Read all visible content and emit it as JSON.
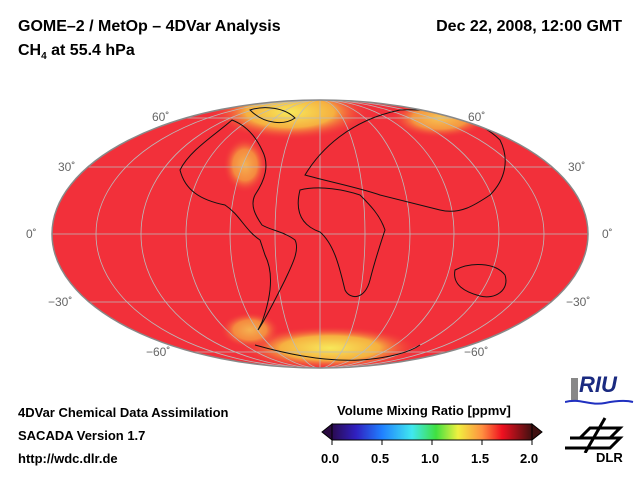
{
  "header": {
    "title": "GOME–2 / MetOp – 4DVar Analysis",
    "species": "CH",
    "species_sub": "4",
    "level": " at 55.4 hPa",
    "datetime": "Dec 22, 2008, 12:00 GMT"
  },
  "map": {
    "projection": "Hammer/Mollweide global",
    "lat_labels_left": [
      "60˚",
      "30˚",
      "0˚",
      "−30˚",
      "−60˚"
    ],
    "lat_labels_right": [
      "60˚",
      "30˚",
      "0˚",
      "−30˚",
      "−60˚"
    ],
    "background_color": "#f2303a",
    "high_color": "#f5e040"
  },
  "footer": {
    "line1": "4DVar Chemical Data Assimilation",
    "line2": "SACADA Version 1.7",
    "line3": "http://wdc.dlr.de"
  },
  "colorbar": {
    "title": "Volume Mixing Ratio [ppmv]",
    "ticks": [
      "0.0",
      "0.5",
      "1.0",
      "1.5",
      "2.0"
    ],
    "range": [
      0,
      2.0
    ]
  },
  "logos": {
    "riu": "RIU",
    "dlr": "DLR"
  }
}
